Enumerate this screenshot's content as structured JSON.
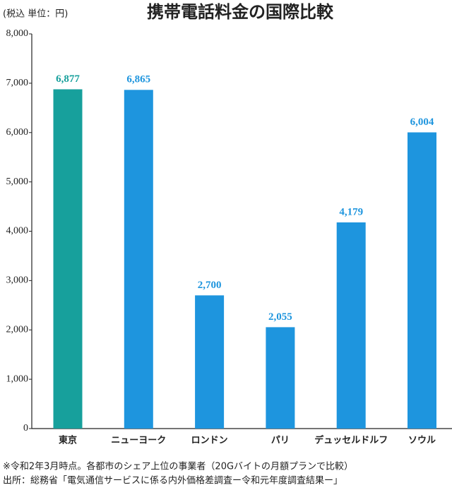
{
  "chart_data": {
    "type": "bar",
    "title": "携帯電話料金の国際比較",
    "unit_label": "(税込 単位：円)",
    "categories": [
      "東京",
      "ニューヨーク",
      "ロンドン",
      "パリ",
      "デュッセルドルフ",
      "ソウル"
    ],
    "values": [
      6877,
      6865,
      2700,
      2055,
      4179,
      6004
    ],
    "value_labels": [
      "6,877",
      "6,865",
      "2,700",
      "2,055",
      "4,179",
      "6,004"
    ],
    "colors": [
      "#17a09c",
      "#1e95de",
      "#1e95de",
      "#1e95de",
      "#1e95de",
      "#1e95de"
    ],
    "ylim": [
      0,
      8000
    ],
    "yticks": [
      0,
      {
        "value": 1000,
        "label": "1,000"
      },
      {
        "value": 2000,
        "label": "2,000"
      },
      {
        "value": 3000,
        "label": "3,000"
      },
      {
        "value": 4000,
        "label": "4,000"
      },
      {
        "value": 5000,
        "label": "5,000"
      },
      {
        "value": 6000,
        "label": "6,000"
      },
      {
        "value": 7000,
        "label": "7,000"
      },
      {
        "value": 8000,
        "label": "8,000"
      }
    ],
    "notes": [
      "※令和2年3月時点。各都市のシェア上位の事業者（20Gバイトの月額プランで比較）",
      "出所：総務省「電気通信サービスに係る内外価格差調査ー令和元年度調査結果ー」"
    ]
  }
}
